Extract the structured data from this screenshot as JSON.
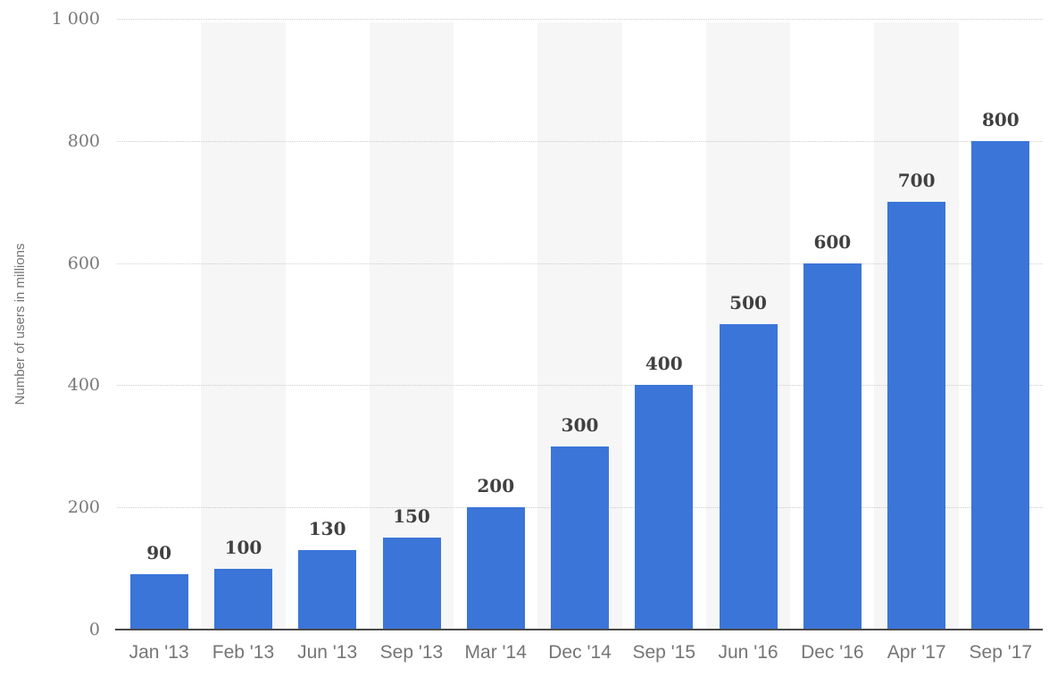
{
  "chart_data": {
    "type": "bar",
    "title": "",
    "xlabel": "",
    "ylabel": "Number of users in millions",
    "categories": [
      "Jan '13",
      "Feb '13",
      "Jun '13",
      "Sep '13",
      "Mar '14",
      "Dec '14",
      "Sep '15",
      "Jun '16",
      "Dec '16",
      "Apr '17",
      "Sep '17"
    ],
    "values": [
      90,
      100,
      130,
      150,
      200,
      300,
      400,
      500,
      600,
      700,
      800
    ],
    "value_labels": [
      "90",
      "100",
      "130",
      "150",
      "200",
      "300",
      "400",
      "500",
      "600",
      "700",
      "800"
    ],
    "ylim": [
      0,
      1000
    ],
    "yticks": [
      {
        "value": 0,
        "label": "0"
      },
      {
        "value": 200,
        "label": "200"
      },
      {
        "value": 400,
        "label": "400"
      },
      {
        "value": 600,
        "label": "600"
      },
      {
        "value": 800,
        "label": "800"
      },
      {
        "value": 1000,
        "label": "1 000"
      }
    ],
    "grid": "horizontal dotted lines at ticks, vertical alternating column stripes",
    "legend": "none",
    "colors": {
      "bar": "#3b75d8",
      "stripe": "#f6f6f6",
      "gridline": "#cccccc",
      "axis_line": "#4a4a4a",
      "value_label": "#404040",
      "y_tick_label": "#777777",
      "x_tick_label": "#757575",
      "background": "#ffffff"
    }
  }
}
